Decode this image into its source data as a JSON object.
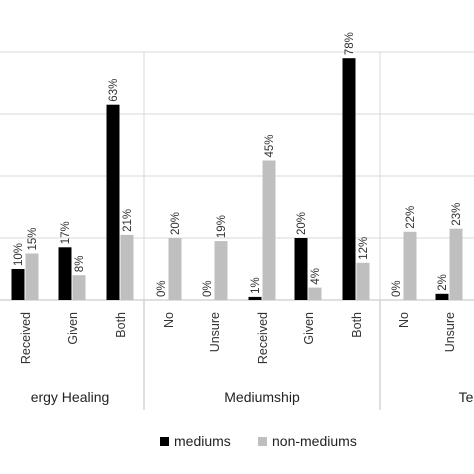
{
  "chart_data": {
    "type": "bar",
    "ylim": [
      0,
      80
    ],
    "grid": true,
    "legend_position": "bottom",
    "colors": {
      "mediums": "#000000",
      "non_mediums": "#bfbfbf"
    },
    "series": [
      {
        "name": "mediums"
      },
      {
        "name": "non-mediums"
      }
    ],
    "groups": [
      {
        "name": "ergy Healing",
        "categories": [
          {
            "label": "Received",
            "mediums": 10,
            "non_mediums": 15,
            "mediums_label": "10%",
            "non_mediums_label": "15%"
          },
          {
            "label": "Given",
            "mediums": 17,
            "non_mediums": 8,
            "mediums_label": "17%",
            "non_mediums_label": "8%"
          },
          {
            "label": "Both",
            "mediums": 63,
            "non_mediums": 21,
            "mediums_label": "63%",
            "non_mediums_label": "21%"
          }
        ]
      },
      {
        "name": "Mediumship",
        "categories": [
          {
            "label": "No",
            "mediums": 0,
            "non_mediums": 20,
            "mediums_label": "0%",
            "non_mediums_label": "20%"
          },
          {
            "label": "Unsure",
            "mediums": 0,
            "non_mediums": 19,
            "mediums_label": "0%",
            "non_mediums_label": "19%"
          },
          {
            "label": "Received",
            "mediums": 1,
            "non_mediums": 45,
            "mediums_label": "1%",
            "non_mediums_label": "45%"
          },
          {
            "label": "Given",
            "mediums": 20,
            "non_mediums": 4,
            "mediums_label": "20%",
            "non_mediums_label": "4%"
          },
          {
            "label": "Both",
            "mediums": 78,
            "non_mediums": 12,
            "mediums_label": "78%",
            "non_mediums_label": "12%"
          }
        ]
      },
      {
        "name": "Te",
        "categories": [
          {
            "label": "No",
            "mediums": 0,
            "non_mediums": 22,
            "mediums_label": "0%",
            "non_mediums_label": "22%"
          },
          {
            "label": "Unsure",
            "mediums": 2,
            "non_mediums": 23,
            "mediums_label": "2%",
            "non_mediums_label": "23%"
          }
        ]
      }
    ]
  }
}
